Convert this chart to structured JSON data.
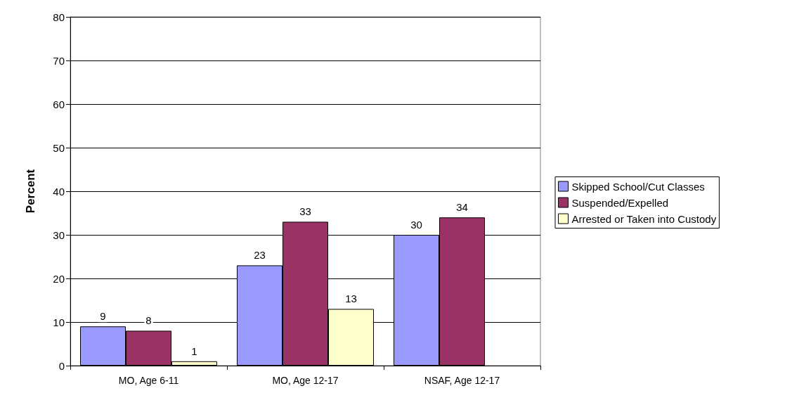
{
  "chart_data": {
    "type": "bar",
    "ylabel": "Percent",
    "categories": [
      "MO, Age 6-11",
      "MO, Age 12-17",
      "NSAF, Age 12-17"
    ],
    "series": [
      {
        "name": "Skipped School/Cut Classes",
        "color": "#9999ff",
        "values": [
          9,
          23,
          30
        ]
      },
      {
        "name": "Suspended/Expelled",
        "color": "#993366",
        "values": [
          8,
          33,
          34
        ]
      },
      {
        "name": "Arrested or Taken into Custody",
        "color": "#ffffcc",
        "values": [
          1,
          13,
          null
        ]
      }
    ],
    "ylim": [
      0,
      80
    ],
    "yticks": [
      0,
      10,
      20,
      30,
      40,
      50,
      60,
      70,
      80
    ],
    "grid": "y",
    "legend": "right",
    "data_labels": true
  }
}
